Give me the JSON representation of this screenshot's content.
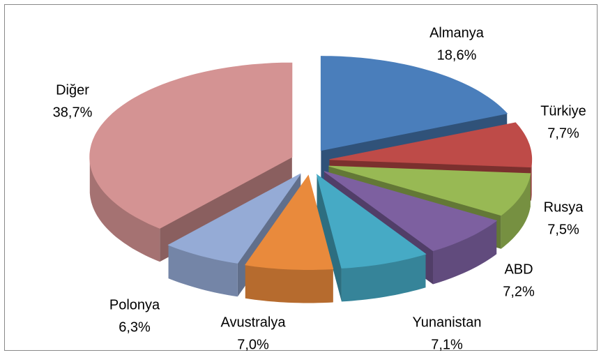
{
  "chart_data": {
    "type": "pie",
    "categories": [
      "Almanya",
      "Türkiye",
      "Rusya",
      "ABD",
      "Yunanistan",
      "Avustralya",
      "Polonya",
      "Diğer"
    ],
    "values": [
      18.6,
      7.7,
      7.5,
      7.2,
      7.1,
      7.0,
      6.3,
      38.7
    ],
    "value_labels": [
      "18,6%",
      "7,7%",
      "7,5%",
      "7,2%",
      "7,1%",
      "7,0%",
      "6,3%",
      "38,7%"
    ],
    "colors": [
      "#4a7ebb",
      "#be4b48",
      "#98b954",
      "#7d60a0",
      "#46aac5",
      "#e98a3c",
      "#95abd6",
      "#d49393"
    ]
  }
}
